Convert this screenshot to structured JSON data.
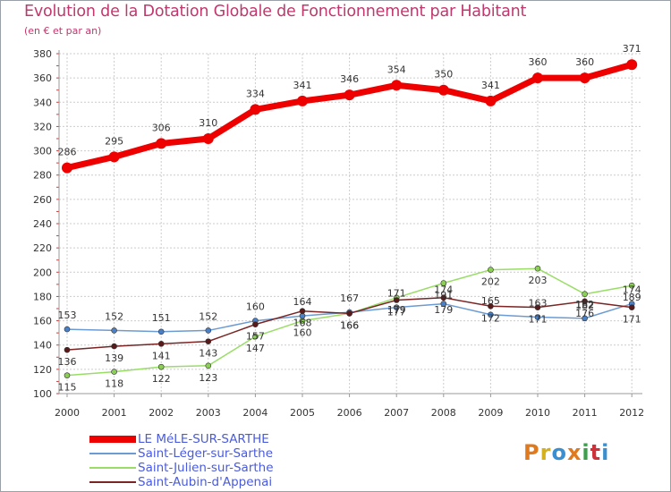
{
  "header": {
    "title": "Evolution de la Dotation Globale de Fonctionnement par Habitant",
    "subtitle": "(en € et par an)"
  },
  "logo": {
    "text": "Proxiti",
    "colors": [
      "#e07a1f",
      "#d4b01e",
      "#3a8fd0",
      "#e07a1f",
      "#3aa04a",
      "#d0303a",
      "#3a8fd0"
    ]
  },
  "chart_data": {
    "type": "line",
    "x": [
      "2000",
      "2001",
      "2002",
      "2003",
      "2004",
      "2005",
      "2006",
      "2007",
      "2008",
      "2009",
      "2010",
      "2011",
      "2012"
    ],
    "ylim": [
      100,
      380
    ],
    "yticks": [
      100,
      120,
      140,
      160,
      180,
      200,
      220,
      240,
      260,
      280,
      300,
      320,
      340,
      360,
      380
    ],
    "grid": true,
    "legend_position": "bottom-left",
    "series": [
      {
        "name": "LE MéLE-SUR-SARTHE",
        "color": "#ee0000",
        "values": [
          286,
          295,
          306,
          310,
          334,
          341,
          346,
          354,
          350,
          341,
          360,
          360,
          371
        ]
      },
      {
        "name": "Saint-Léger-sur-Sarthe",
        "color": "#6b9bd2",
        "values": [
          153,
          152,
          151,
          152,
          160,
          164,
          167,
          171,
          174,
          165,
          163,
          162,
          174
        ]
      },
      {
        "name": "Saint-Julien-sur-Sarthe",
        "color": "#99dd66",
        "values": [
          115,
          118,
          122,
          123,
          147,
          160,
          166,
          179,
          191,
          202,
          203,
          182,
          189
        ]
      },
      {
        "name": "Saint-Aubin-d'Appenai",
        "color": "#7a2424",
        "values": [
          136,
          139,
          141,
          143,
          157,
          168,
          166,
          177,
          179,
          172,
          171,
          176,
          171
        ]
      }
    ]
  }
}
